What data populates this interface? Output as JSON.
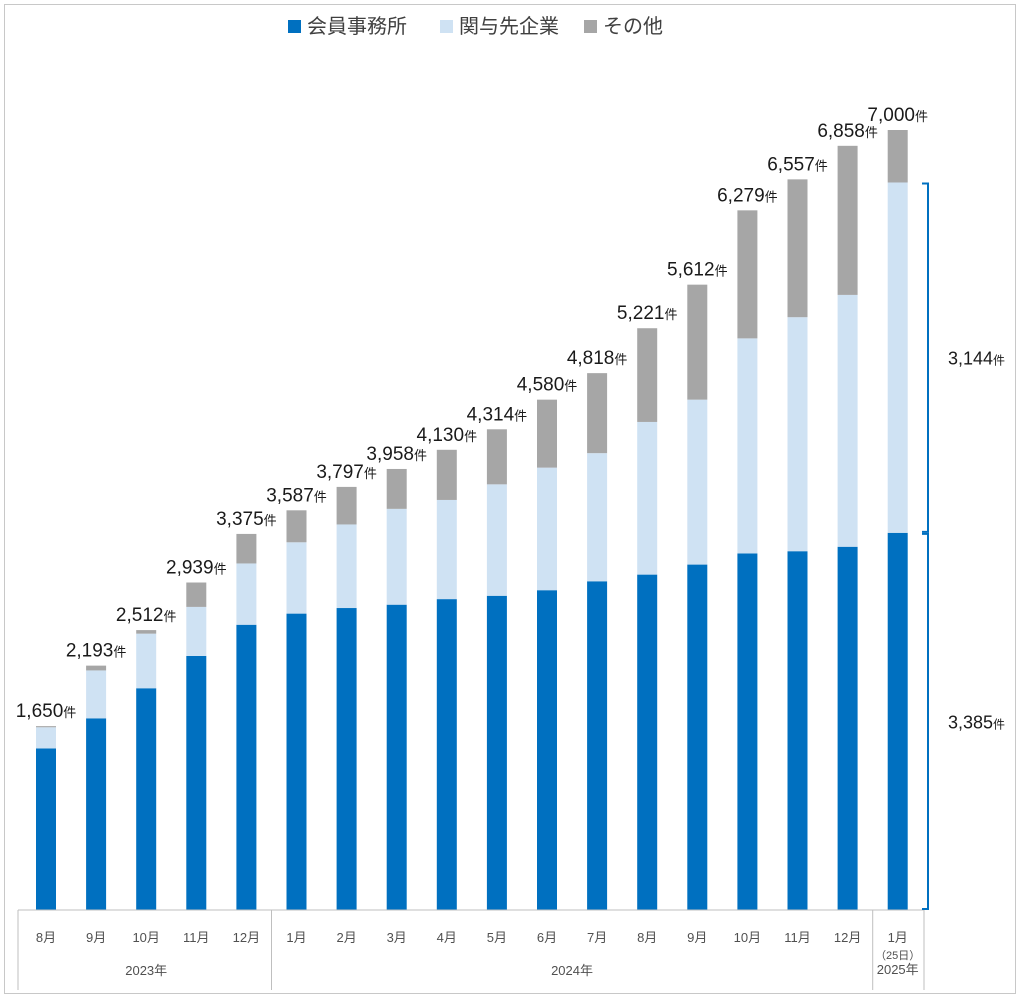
{
  "chart_data": {
    "type": "bar",
    "stacked": true,
    "legend_position": "top-center",
    "colors": {
      "members": "#0070c0",
      "related": "#cfe2f3",
      "other": "#a6a6a6"
    },
    "series": [
      {
        "name": "会員事務所",
        "values": [
          1450,
          1720,
          1990,
          2280,
          2560,
          2660,
          2710,
          2740,
          2790,
          2820,
          2870,
          2950,
          3010,
          3100,
          3200,
          3220,
          3260,
          3385
        ]
      },
      {
        "name": "関与先企業",
        "values": [
          190,
          430,
          490,
          440,
          550,
          640,
          750,
          860,
          890,
          1000,
          1100,
          1150,
          1370,
          1480,
          1930,
          2100,
          2260,
          3144
        ]
      },
      {
        "name": "その他",
        "values": [
          10,
          43,
          32,
          219,
          265,
          287,
          337,
          358,
          450,
          494,
          610,
          718,
          841,
          1032,
          1149,
          1237,
          1338,
          471
        ]
      }
    ],
    "categories": [
      "8月",
      "9月",
      "10月",
      "11月",
      "12月",
      "1月",
      "2月",
      "3月",
      "4月",
      "5月",
      "6月",
      "7月",
      "8月",
      "9月",
      "10月",
      "11月",
      "12月",
      "1月"
    ],
    "totals": [
      "1,650",
      "2,193",
      "2,512",
      "2,939",
      "3,375",
      "3,587",
      "3,797",
      "3,958",
      "4,130",
      "4,314",
      "4,580",
      "4,818",
      "5,221",
      "5,612",
      "6,279",
      "6,557",
      "6,858",
      "7,000"
    ],
    "total_unit": "件",
    "last_sub_label": "（25日）",
    "years": [
      {
        "label": "2023年",
        "start": 0,
        "end": 4
      },
      {
        "label": "2024年",
        "start": 5,
        "end": 16
      },
      {
        "label": "2025年",
        "start": 17,
        "end": 17
      }
    ],
    "brace_annotations": [
      {
        "label": "3,144",
        "unit": "件",
        "from": 3385,
        "to": 6529
      },
      {
        "label": "3,385",
        "unit": "件",
        "from": 0,
        "to": 3385
      }
    ],
    "ylim": [
      0,
      7500
    ]
  }
}
